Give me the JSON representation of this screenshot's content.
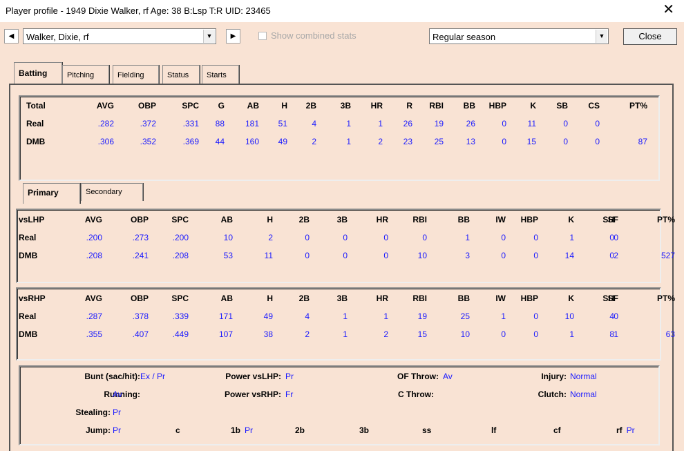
{
  "window": {
    "title": "Player profile - 1949 Dixie Walker, rf  Age: 38  B:Lsp T:R  UID: 23465",
    "close_glyph": "✕"
  },
  "toolbar": {
    "prev_glyph": "◀",
    "next_glyph": "▶",
    "dropdown_glyph": "▼",
    "player_select": "Walker, Dixie, rf",
    "combined_label": "Show combined stats",
    "season_select": "Regular season",
    "close_label": "Close"
  },
  "tabs": [
    "Batting",
    "Pitching",
    "Fielding",
    "Status",
    "Starts"
  ],
  "subtabs": [
    "Primary",
    "Secondary"
  ],
  "total": {
    "headers": [
      "Total",
      "AVG",
      "OBP",
      "SPC",
      "G",
      "AB",
      "H",
      "2B",
      "3B",
      "HR",
      "R",
      "RBI",
      "BB",
      "HBP",
      "K",
      "SB",
      "CS",
      "PT%"
    ],
    "rows": [
      [
        "Real",
        ".282",
        ".372",
        ".331",
        "88",
        "181",
        "51",
        "4",
        "1",
        "1",
        "26",
        "19",
        "26",
        "0",
        "11",
        "0",
        "0",
        ""
      ],
      [
        "DMB",
        ".306",
        ".352",
        ".369",
        "44",
        "160",
        "49",
        "2",
        "1",
        "2",
        "23",
        "25",
        "13",
        "0",
        "15",
        "0",
        "0",
        "87"
      ]
    ]
  },
  "vslhp": {
    "headers": [
      "vsLHP",
      "AVG",
      "OBP",
      "SPC",
      "AB",
      "H",
      "2B",
      "3B",
      "HR",
      "RBI",
      "BB",
      "IW",
      "HBP",
      "K",
      "SH",
      "SF",
      "PT%"
    ],
    "rows": [
      [
        "Real",
        ".200",
        ".273",
        ".200",
        "10",
        "2",
        "0",
        "0",
        "0",
        "0",
        "1",
        "0",
        "0",
        "1",
        "0",
        "0",
        ""
      ],
      [
        "DMB",
        ".208",
        ".241",
        ".208",
        "53",
        "11",
        "0",
        "0",
        "0",
        "10",
        "3",
        "0",
        "0",
        "14",
        "0",
        "2",
        "527"
      ]
    ]
  },
  "vsrhp": {
    "headers": [
      "vsRHP",
      "AVG",
      "OBP",
      "SPC",
      "AB",
      "H",
      "2B",
      "3B",
      "HR",
      "RBI",
      "BB",
      "IW",
      "HBP",
      "K",
      "SH",
      "SF",
      "PT%"
    ],
    "rows": [
      [
        "Real",
        ".287",
        ".378",
        ".339",
        "171",
        "49",
        "4",
        "1",
        "1",
        "19",
        "25",
        "1",
        "0",
        "10",
        "4",
        "0",
        ""
      ],
      [
        "DMB",
        ".355",
        ".407",
        ".449",
        "107",
        "38",
        "2",
        "1",
        "2",
        "15",
        "10",
        "0",
        "0",
        "1",
        "8",
        "1",
        "63"
      ]
    ]
  },
  "ratings": {
    "bunt": {
      "label": "Bunt (sac/hit):",
      "value": "Ex / Pr"
    },
    "running": {
      "label": "Running:",
      "value": "Av"
    },
    "stealing": {
      "label": "Stealing:",
      "value": "Pr"
    },
    "jump": {
      "label": "Jump:",
      "value": "Pr"
    },
    "power_lhp": {
      "label": "Power vsLHP:",
      "value": "Pr"
    },
    "power_rhp": {
      "label": "Power vsRHP:",
      "value": "Fr"
    },
    "of_throw": {
      "label": "OF Throw:",
      "value": "Av"
    },
    "c_throw": {
      "label": "C Throw:",
      "value": ""
    },
    "injury": {
      "label": "Injury:",
      "value": "Normal"
    },
    "clutch": {
      "label": "Clutch:",
      "value": "Normal"
    },
    "positions": [
      {
        "label": "c",
        "value": ""
      },
      {
        "label": "1b",
        "value": "Pr"
      },
      {
        "label": "2b",
        "value": ""
      },
      {
        "label": "3b",
        "value": ""
      },
      {
        "label": "ss",
        "value": ""
      },
      {
        "label": "lf",
        "value": ""
      },
      {
        "label": "cf",
        "value": ""
      },
      {
        "label": "rf",
        "value": "Pr"
      }
    ]
  }
}
